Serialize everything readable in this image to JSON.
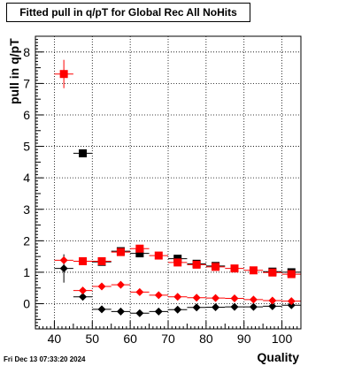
{
  "timestamp": "Fri Dec 13 07:33:20 2024",
  "chart_data": {
    "type": "scatter",
    "title": "Fitted pull in q/pT for Global Rec All NoHits",
    "xlabel": "Quality",
    "ylabel": "pull in q/pT",
    "xlim": [
      35,
      105
    ],
    "ylim": [
      -0.8,
      8.5
    ],
    "xticks": [
      40,
      50,
      60,
      70,
      80,
      90,
      100
    ],
    "yticks": [
      0,
      1,
      2,
      3,
      4,
      5,
      6,
      7,
      8
    ],
    "grid": true,
    "x": [
      42.5,
      47.5,
      52.5,
      57.5,
      62.5,
      67.5,
      72.5,
      77.5,
      82.5,
      87.5,
      92.5,
      97.5,
      102.5
    ],
    "series": [
      {
        "marker": "square",
        "color": "#000000",
        "values": [
          null,
          4.78,
          1.33,
          1.67,
          1.6,
          null,
          1.43,
          1.27,
          1.2,
          null,
          null,
          1.02,
          1.0
        ],
        "errors": [
          null,
          0.07,
          0.07,
          0.06,
          0.06,
          null,
          0.05,
          0.05,
          0.05,
          null,
          null,
          0.05,
          0.05
        ]
      },
      {
        "marker": "square",
        "color": "#ff0000",
        "values": [
          7.3,
          1.35,
          1.35,
          1.64,
          1.75,
          1.53,
          1.31,
          1.24,
          1.17,
          1.12,
          1.06,
          0.99,
          0.94
        ],
        "errors": [
          0.45,
          0.05,
          0.05,
          0.06,
          0.07,
          0.05,
          0.05,
          0.04,
          0.04,
          0.04,
          0.04,
          0.04,
          0.04
        ]
      },
      {
        "marker": "diamond",
        "color": "#000000",
        "values": [
          1.12,
          0.22,
          -0.18,
          -0.25,
          -0.3,
          -0.25,
          -0.19,
          -0.12,
          -0.11,
          -0.1,
          -0.1,
          -0.08,
          -0.05
        ],
        "errors": [
          0.45,
          0.05,
          0.04,
          0.04,
          0.04,
          0.03,
          0.03,
          0.03,
          0.03,
          0.03,
          0.03,
          0.03,
          0.03
        ]
      },
      {
        "marker": "diamond",
        "color": "#ff0000",
        "values": [
          1.38,
          0.42,
          0.55,
          0.6,
          0.37,
          0.27,
          0.22,
          0.19,
          0.18,
          0.17,
          0.13,
          0.1,
          0.08
        ],
        "errors": [
          0.06,
          0.04,
          0.04,
          0.04,
          0.03,
          0.03,
          0.03,
          0.03,
          0.03,
          0.03,
          0.03,
          0.03,
          0.03
        ]
      }
    ]
  }
}
